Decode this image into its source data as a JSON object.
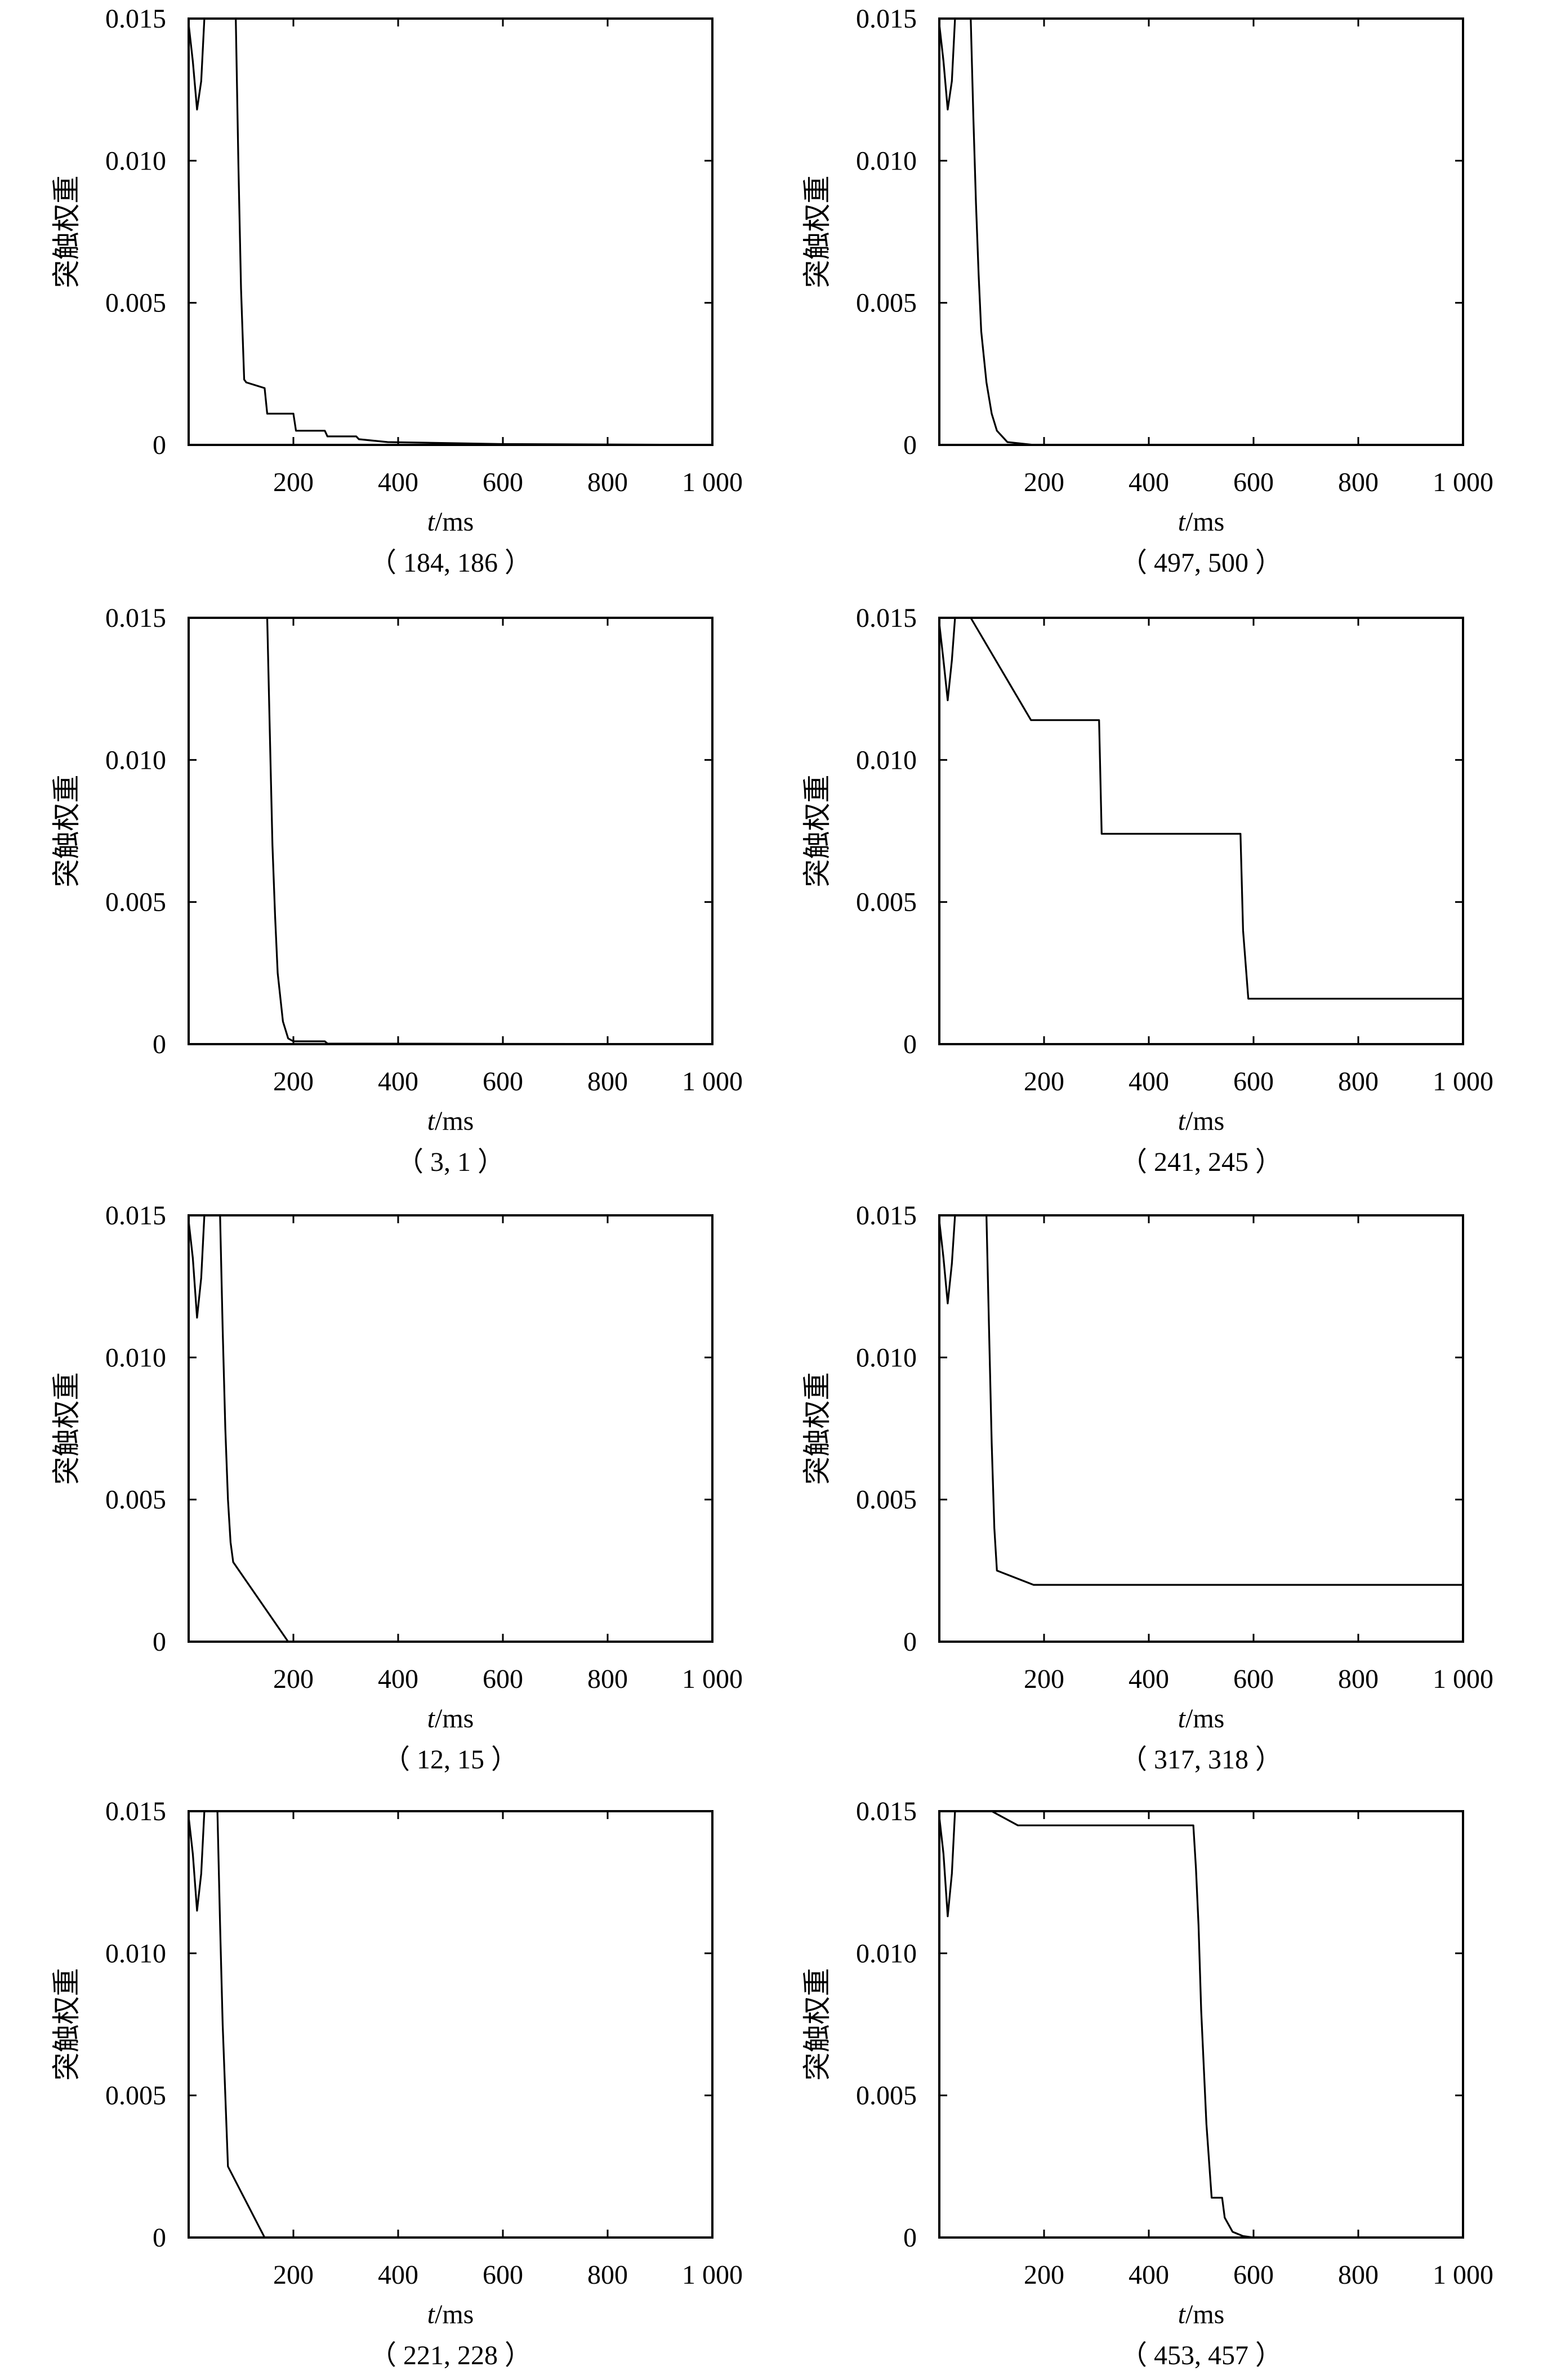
{
  "figure": {
    "ylabel": "突触权重",
    "xlabel_italic": "t",
    "xlabel_rest": "/ms"
  },
  "chart_data": [
    {
      "type": "line",
      "caption": "（ 184, 186 ）",
      "xlim": [
        0,
        1000
      ],
      "ylim": [
        0,
        0.015
      ],
      "xticks": [
        200,
        400,
        600,
        800,
        1000
      ],
      "xtick_labels": [
        "200",
        "400",
        "600",
        "800",
        "1 000"
      ],
      "yticks": [
        0,
        0.005,
        0.01,
        0.015
      ],
      "ytick_labels": [
        "0",
        "0.005",
        "0.010",
        "0.015"
      ],
      "ylabel": "突触权重",
      "xlabel": "t/ms",
      "color": "#000000",
      "series": [
        {
          "x": [
            0,
            8,
            16,
            24,
            30,
            32,
            35,
            90,
            95,
            100,
            106,
            110,
            145,
            150,
            155,
            200,
            205,
            260,
            265,
            320,
            325,
            380,
            600,
            1000
          ],
          "y": [
            0.0148,
            0.0135,
            0.0118,
            0.0128,
            0.015,
            0.015,
            0.015,
            0.015,
            0.0098,
            0.0055,
            0.0023,
            0.0022,
            0.002,
            0.0011,
            0.0011,
            0.0011,
            0.0005,
            0.0005,
            0.0003,
            0.0003,
            0.0002,
            0.0001,
            3e-05,
            0.0
          ]
        }
      ]
    },
    {
      "type": "line",
      "caption": "（ 497, 500 ）",
      "xlim": [
        0,
        1000
      ],
      "ylim": [
        0,
        0.015
      ],
      "xticks": [
        200,
        400,
        600,
        800,
        1000
      ],
      "xtick_labels": [
        "200",
        "400",
        "600",
        "800",
        "1 000"
      ],
      "yticks": [
        0,
        0.005,
        0.01,
        0.015
      ],
      "ytick_labels": [
        "0",
        "0.005",
        "0.010",
        "0.015"
      ],
      "ylabel": "突触权重",
      "xlabel": "t/ms",
      "color": "#000000",
      "series": [
        {
          "x": [
            0,
            8,
            16,
            24,
            30,
            60,
            65,
            70,
            75,
            80,
            90,
            100,
            110,
            130,
            180,
            1000
          ],
          "y": [
            0.0148,
            0.0135,
            0.0118,
            0.0128,
            0.015,
            0.015,
            0.0115,
            0.0085,
            0.006,
            0.004,
            0.0022,
            0.0011,
            0.0005,
            0.0001,
            0.0,
            0.0
          ]
        }
      ]
    },
    {
      "type": "line",
      "caption": "（ 3, 1 ）",
      "xlim": [
        0,
        1000
      ],
      "ylim": [
        0,
        0.015
      ],
      "xticks": [
        200,
        400,
        600,
        800,
        1000
      ],
      "xtick_labels": [
        "200",
        "400",
        "600",
        "800",
        "1 000"
      ],
      "yticks": [
        0,
        0.005,
        0.01,
        0.015
      ],
      "ytick_labels": [
        "0",
        "0.005",
        "0.010",
        "0.015"
      ],
      "ylabel": "突触权重",
      "xlabel": "t/ms",
      "color": "#000000",
      "series": [
        {
          "x": [
            150,
            155,
            160,
            165,
            170,
            180,
            190,
            200,
            260,
            265,
            1000
          ],
          "y": [
            0.015,
            0.011,
            0.007,
            0.0045,
            0.0025,
            0.0008,
            0.0002,
            0.0001,
            0.0001,
            2e-05,
            0.0
          ]
        }
      ]
    },
    {
      "type": "line",
      "caption": "（ 241, 245 ）",
      "xlim": [
        0,
        1000
      ],
      "ylim": [
        0,
        0.015
      ],
      "xticks": [
        200,
        400,
        600,
        800,
        1000
      ],
      "xtick_labels": [
        "200",
        "400",
        "600",
        "800",
        "1 000"
      ],
      "yticks": [
        0,
        0.005,
        0.01,
        0.015
      ],
      "ytick_labels": [
        "0",
        "0.005",
        "0.010",
        "0.015"
      ],
      "ylabel": "突触权重",
      "xlabel": "t/ms",
      "color": "#000000",
      "series": [
        {
          "x": [
            0,
            8,
            16,
            24,
            30,
            60,
            175,
            305,
            310,
            575,
            580,
            590,
            1000
          ],
          "y": [
            0.0148,
            0.0135,
            0.0121,
            0.0135,
            0.015,
            0.015,
            0.0114,
            0.0114,
            0.0074,
            0.0074,
            0.004,
            0.0016,
            0.0016
          ]
        }
      ]
    },
    {
      "type": "line",
      "caption": "（ 12, 15 ）",
      "xlim": [
        0,
        1000
      ],
      "ylim": [
        0,
        0.015
      ],
      "xticks": [
        200,
        400,
        600,
        800,
        1000
      ],
      "xtick_labels": [
        "200",
        "400",
        "600",
        "800",
        "1 000"
      ],
      "yticks": [
        0,
        0.005,
        0.01,
        0.015
      ],
      "ytick_labels": [
        "0",
        "0.005",
        "0.010",
        "0.015"
      ],
      "ylabel": "突触权重",
      "xlabel": "t/ms",
      "color": "#000000",
      "series": [
        {
          "x": [
            0,
            8,
            16,
            24,
            30,
            60,
            65,
            70,
            75,
            80,
            85,
            190,
            1000
          ],
          "y": [
            0.0148,
            0.0135,
            0.0114,
            0.0128,
            0.015,
            0.015,
            0.011,
            0.0075,
            0.005,
            0.0035,
            0.0028,
            0.0,
            0.0
          ]
        }
      ]
    },
    {
      "type": "line",
      "caption": "（ 317, 318 ）",
      "xlim": [
        0,
        1000
      ],
      "ylim": [
        0,
        0.015
      ],
      "xticks": [
        200,
        400,
        600,
        800,
        1000
      ],
      "xtick_labels": [
        "200",
        "400",
        "600",
        "800",
        "1 000"
      ],
      "yticks": [
        0,
        0.005,
        0.01,
        0.015
      ],
      "ytick_labels": [
        "0",
        "0.005",
        "0.010",
        "0.015"
      ],
      "ylabel": "突触权重",
      "xlabel": "t/ms",
      "color": "#000000",
      "series": [
        {
          "x": [
            0,
            8,
            16,
            24,
            30,
            90,
            95,
            100,
            105,
            110,
            180,
            1000
          ],
          "y": [
            0.0148,
            0.0135,
            0.0119,
            0.0133,
            0.015,
            0.015,
            0.011,
            0.007,
            0.004,
            0.0025,
            0.002,
            0.002
          ]
        }
      ]
    },
    {
      "type": "line",
      "caption": "（ 221, 228 ）",
      "xlim": [
        0,
        1000
      ],
      "ylim": [
        0,
        0.015
      ],
      "xticks": [
        200,
        400,
        600,
        800,
        1000
      ],
      "xtick_labels": [
        "200",
        "400",
        "600",
        "800",
        "1 000"
      ],
      "yticks": [
        0,
        0.005,
        0.01,
        0.015
      ],
      "ytick_labels": [
        "0",
        "0.005",
        "0.010",
        "0.015"
      ],
      "ylabel": "突触权重",
      "xlabel": "t/ms",
      "color": "#000000",
      "series": [
        {
          "x": [
            0,
            8,
            16,
            24,
            30,
            55,
            60,
            65,
            70,
            75,
            145,
            1000
          ],
          "y": [
            0.0148,
            0.0135,
            0.0115,
            0.0128,
            0.015,
            0.015,
            0.011,
            0.0075,
            0.005,
            0.0025,
            0.0,
            0.0
          ]
        }
      ]
    },
    {
      "type": "line",
      "caption": "（ 453, 457 ）",
      "xlim": [
        0,
        1000
      ],
      "ylim": [
        0,
        0.015
      ],
      "xticks": [
        200,
        400,
        600,
        800,
        1000
      ],
      "xtick_labels": [
        "200",
        "400",
        "600",
        "800",
        "1 000"
      ],
      "yticks": [
        0,
        0.005,
        0.01,
        0.015
      ],
      "ytick_labels": [
        "0",
        "0.005",
        "0.010",
        "0.015"
      ],
      "ylabel": "突触权重",
      "xlabel": "t/ms",
      "color": "#000000",
      "series": [
        {
          "x": [
            0,
            8,
            16,
            24,
            30,
            100,
            150,
            485,
            490,
            495,
            500,
            510,
            520,
            540,
            545,
            560,
            580,
            600,
            1000
          ],
          "y": [
            0.0148,
            0.0135,
            0.0113,
            0.0128,
            0.015,
            0.015,
            0.0145,
            0.0145,
            0.013,
            0.011,
            0.008,
            0.004,
            0.0014,
            0.0014,
            0.0007,
            0.0002,
            5e-05,
            0.0,
            0.0
          ]
        }
      ]
    }
  ]
}
